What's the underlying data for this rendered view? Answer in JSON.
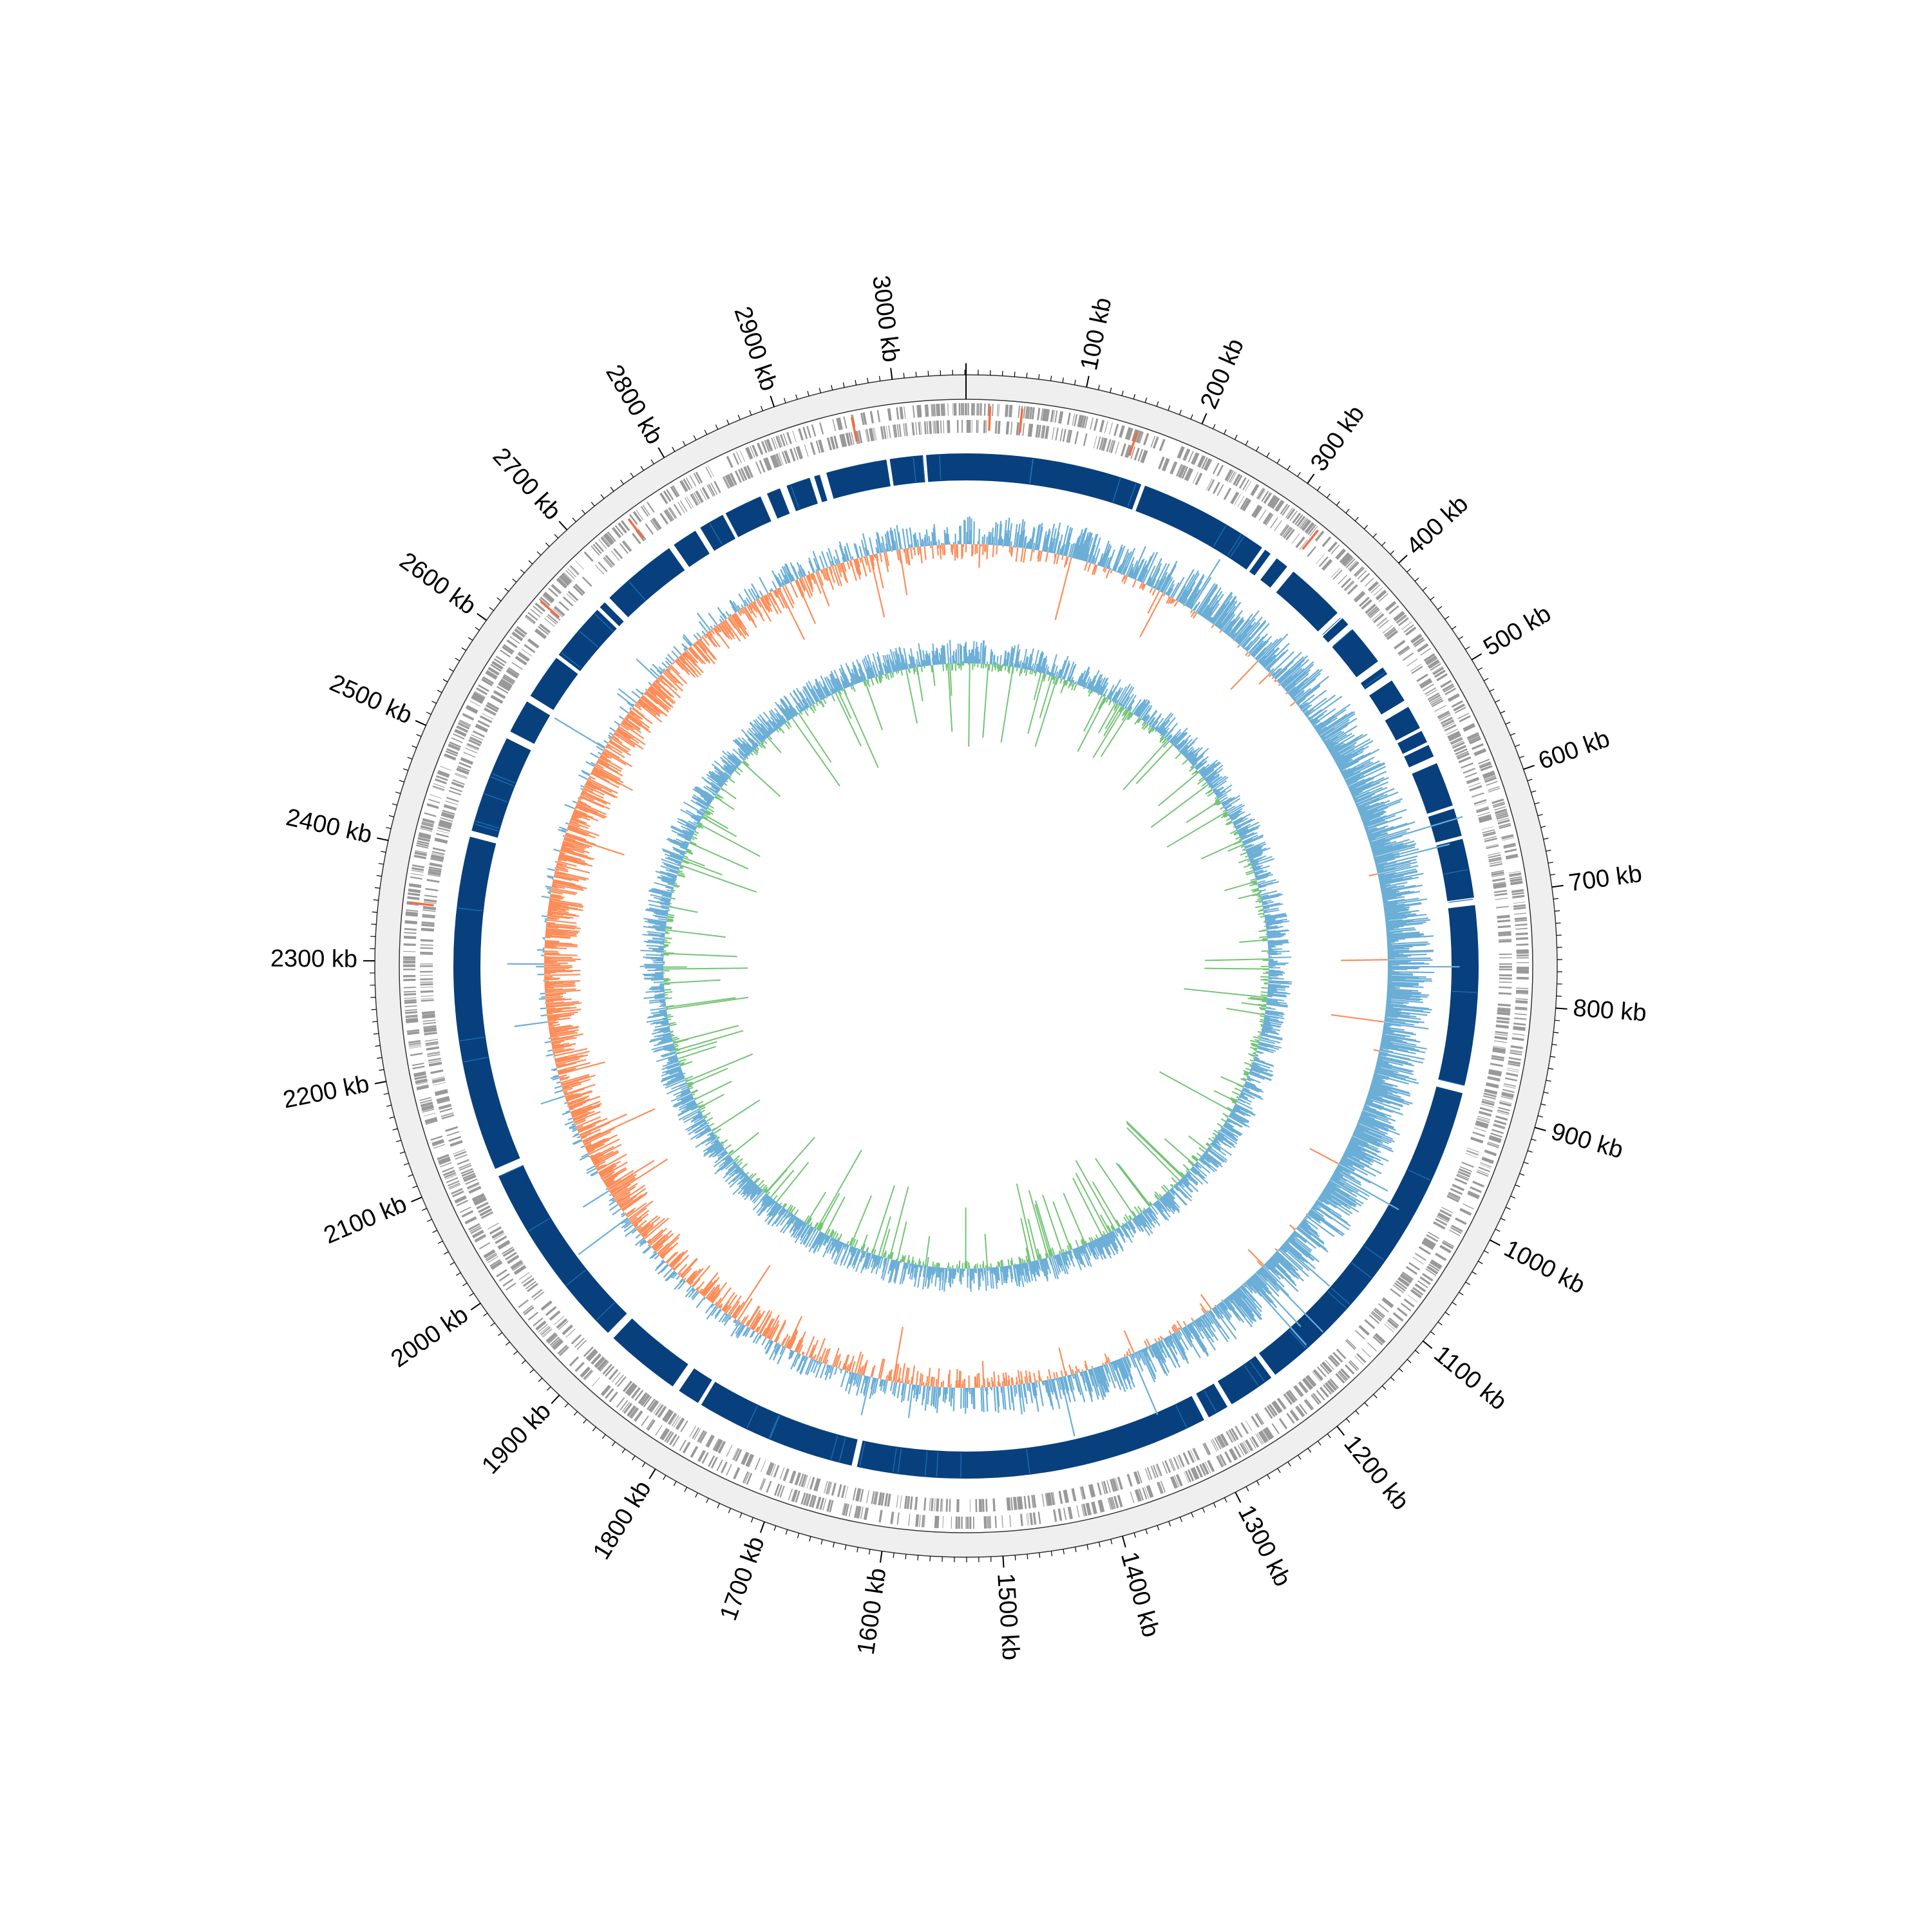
{
  "genome": {
    "length_kb": 3061,
    "scale_labels": [
      "100 kb",
      "200 kb",
      "300 kb",
      "400 kb",
      "500 kb",
      "600 kb",
      "700 kb",
      "800 kb",
      "900 kb",
      "1000 kb",
      "1100 kb",
      "1200 kb",
      "1300 kb",
      "1400 kb",
      "1500 kb",
      "1600 kb",
      "1700 kb",
      "1800 kb",
      "1900 kb",
      "2000 kb",
      "2100 kb",
      "2200 kb",
      "2300 kb",
      "2400 kb",
      "2500 kb",
      "2600 kb",
      "2700 kb",
      "2800 kb",
      "2900 kb",
      "3000 kb"
    ],
    "scale_positions_kb": [
      100,
      200,
      300,
      400,
      500,
      600,
      700,
      800,
      900,
      1000,
      1100,
      1200,
      1300,
      1400,
      1500,
      1600,
      1700,
      1800,
      1900,
      2000,
      2100,
      2200,
      2300,
      2400,
      2500,
      2600,
      2700,
      2800,
      2900,
      3000
    ]
  },
  "tracks": {
    "features": {
      "gene_color": "#999999",
      "rna_color": "#f46d43",
      "rna_positions_kb": [
        20,
        48,
        150,
        330,
        2350,
        2640,
        2745,
        2960
      ]
    },
    "alignment": {
      "color": "#08407e",
      "highlight_color": "#2171b5",
      "gap_starts_kb": [
        170,
        300,
        310,
        330,
        395,
        410,
        455,
        470,
        500,
        530,
        545,
        560,
        610,
        640,
        700,
        880,
        1215,
        1265,
        1290,
        1635,
        1795,
        1820,
        1900,
        2090,
        2420,
        2520,
        2560,
        2610,
        2670,
        2680,
        2760,
        2790,
        2820,
        2860,
        2880,
        2910,
        2920,
        2985,
        3020
      ]
    },
    "gc_content": {
      "above_color": "#6baed6",
      "below_color": "#fc8d59",
      "fill_above": "#9ecae1",
      "fill_below": "#fc8d59"
    },
    "gc_skew": {
      "positive_color": "#6baed6",
      "negative_color": "#74c476"
    }
  },
  "colors": {
    "ruler_band": "#efefef",
    "background": "#ffffff",
    "text": "#000000"
  }
}
